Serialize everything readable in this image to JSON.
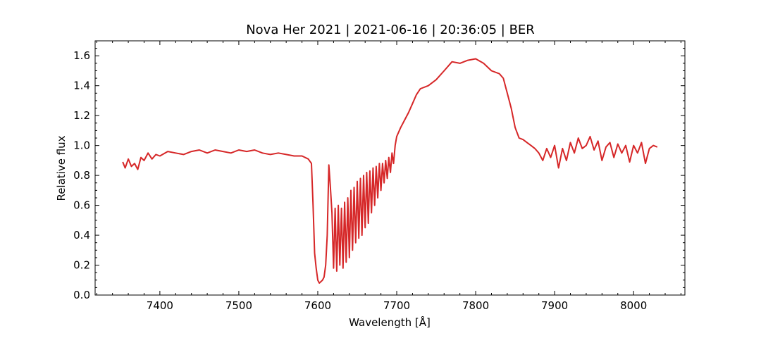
{
  "chart_data": {
    "type": "line",
    "title": "Nova Her 2021 | 2021-06-16 | 20:36:05 | BER",
    "xlabel": "Wavelength [Å]",
    "ylabel": "Relative flux",
    "xlim": [
      7318,
      8065
    ],
    "ylim": [
      0.0,
      1.7
    ],
    "x_ticks": [
      7400,
      7500,
      7600,
      7700,
      7800,
      7900,
      8000
    ],
    "y_ticks": [
      0.0,
      0.2,
      0.4,
      0.6,
      0.8,
      1.0,
      1.2,
      1.4,
      1.6
    ],
    "x_tick_labels": [
      "7400",
      "7500",
      "7600",
      "7700",
      "7800",
      "7900",
      "8000"
    ],
    "y_tick_labels": [
      "0.0",
      "0.2",
      "0.4",
      "0.6",
      "0.8",
      "1.0",
      "1.2",
      "1.4",
      "1.6"
    ],
    "grid": false,
    "line_color": "#d62728",
    "series": [
      {
        "x": [
          7353,
          7356,
          7360,
          7364,
          7368,
          7372,
          7376,
          7380,
          7385,
          7390,
          7395,
          7400,
          7410,
          7420,
          7430,
          7440,
          7450,
          7460,
          7470,
          7480,
          7490,
          7500,
          7510,
          7520,
          7530,
          7540,
          7550,
          7560,
          7570,
          7580,
          7588,
          7592,
          7594,
          7596,
          7598,
          7600,
          7602,
          7604,
          7606,
          7608,
          7610,
          7612,
          7614,
          7616,
          7618,
          7620,
          7622,
          7624,
          7626,
          7628,
          7630,
          7632,
          7634,
          7636,
          7638,
          7640,
          7642,
          7644,
          7646,
          7648,
          7650,
          7652,
          7654,
          7656,
          7658,
          7660,
          7662,
          7664,
          7666,
          7668,
          7670,
          7672,
          7674,
          7676,
          7678,
          7680,
          7682,
          7684,
          7686,
          7688,
          7690,
          7692,
          7694,
          7696,
          7698,
          7700,
          7705,
          7710,
          7715,
          7720,
          7725,
          7730,
          7740,
          7750,
          7760,
          7770,
          7780,
          7790,
          7800,
          7810,
          7820,
          7830,
          7835,
          7840,
          7845,
          7850,
          7855,
          7860,
          7865,
          7870,
          7875,
          7880,
          7885,
          7890,
          7895,
          7900,
          7905,
          7910,
          7915,
          7920,
          7925,
          7930,
          7935,
          7940,
          7945,
          7950,
          7955,
          7960,
          7965,
          7970,
          7975,
          7980,
          7985,
          7990,
          7995,
          8000,
          8005,
          8010,
          8015,
          8020,
          8025,
          8030
        ],
        "y": [
          0.89,
          0.85,
          0.91,
          0.86,
          0.88,
          0.84,
          0.92,
          0.9,
          0.95,
          0.91,
          0.94,
          0.93,
          0.96,
          0.95,
          0.94,
          0.96,
          0.97,
          0.95,
          0.97,
          0.96,
          0.95,
          0.97,
          0.96,
          0.97,
          0.95,
          0.94,
          0.95,
          0.94,
          0.93,
          0.93,
          0.91,
          0.88,
          0.6,
          0.28,
          0.18,
          0.1,
          0.08,
          0.09,
          0.1,
          0.12,
          0.2,
          0.4,
          0.87,
          0.72,
          0.55,
          0.18,
          0.58,
          0.16,
          0.6,
          0.2,
          0.58,
          0.18,
          0.62,
          0.22,
          0.65,
          0.25,
          0.7,
          0.3,
          0.72,
          0.35,
          0.76,
          0.38,
          0.78,
          0.4,
          0.8,
          0.45,
          0.82,
          0.48,
          0.83,
          0.55,
          0.85,
          0.6,
          0.86,
          0.65,
          0.88,
          0.7,
          0.88,
          0.75,
          0.9,
          0.78,
          0.92,
          0.82,
          0.95,
          0.88,
          1.0,
          1.06,
          1.12,
          1.17,
          1.22,
          1.28,
          1.34,
          1.38,
          1.4,
          1.44,
          1.5,
          1.56,
          1.55,
          1.57,
          1.58,
          1.55,
          1.5,
          1.48,
          1.45,
          1.35,
          1.25,
          1.12,
          1.05,
          1.04,
          1.02,
          1.0,
          0.98,
          0.95,
          0.9,
          0.98,
          0.92,
          1.0,
          0.85,
          0.98,
          0.9,
          1.02,
          0.95,
          1.05,
          0.98,
          1.0,
          1.06,
          0.97,
          1.03,
          0.9,
          0.99,
          1.02,
          0.92,
          1.01,
          0.95,
          1.0,
          0.89,
          1.0,
          0.95,
          1.02,
          0.88,
          0.98,
          1.0,
          0.99
        ]
      }
    ]
  }
}
